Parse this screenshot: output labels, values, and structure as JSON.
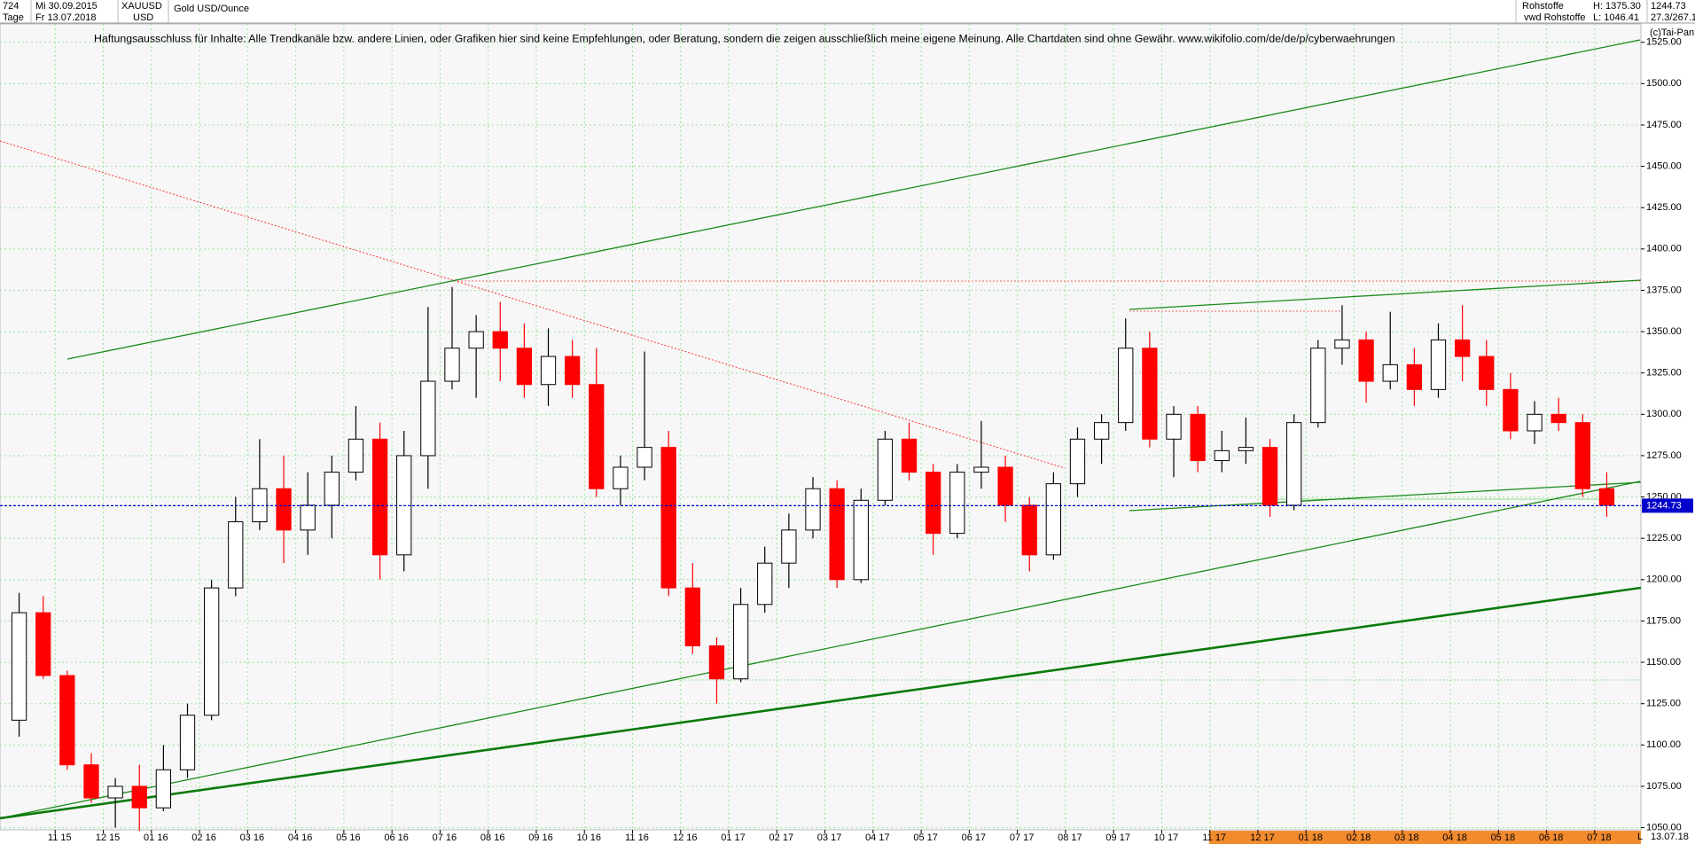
{
  "chart_data": {
    "type": "candlestick",
    "header": {
      "bars": "724",
      "start_date": "Mi 30.09.2015",
      "period": "Tage",
      "end_date": "Fr 13.07.2018",
      "symbol": "XAUUSD",
      "currency": "USD",
      "title": "Gold USD/Ounce",
      "group": "Rohstoffe",
      "high": "H: 1375.30",
      "source": "vwd Rohstoffe",
      "low": "L: 1046.41",
      "last": "1244.73",
      "ratio": "27.3/267.1",
      "copyright": "(c)Tai-Pan"
    },
    "disclaimer": "Haftungsausschluss für Inhalte: Alle Trendkanäle bzw. andere Linien, oder Grafiken hier sind keine Empfehlungen, oder Beratung, sondern die zeigen ausschließlich meine eigene Meinung. Alle Chartdaten sind ohne Gewähr.  www.wikifolio.com/de/de/p/cyberwaehrungen",
    "categories": [
      null,
      null,
      "11 15",
      null,
      "12 15",
      null,
      "01 16",
      null,
      "02 16",
      null,
      "03 16",
      null,
      "04 16",
      null,
      "05 16",
      null,
      "06 16",
      null,
      "07 16",
      null,
      "08 16",
      null,
      "09 16",
      null,
      "10 16",
      null,
      "11 16",
      null,
      "12 16",
      null,
      "01 17",
      null,
      "02 17",
      null,
      "03 17",
      null,
      "04 17",
      null,
      "05 17",
      null,
      "06 17",
      null,
      "07 17",
      null,
      "08 17",
      null,
      "09 17",
      null,
      "10 17",
      null,
      "11 17",
      null,
      "12 17",
      null,
      "01 18",
      null,
      "02 18",
      null,
      "03 18",
      null,
      "04 18",
      null,
      "05 18",
      null,
      "06 18",
      null,
      "07 18"
    ],
    "open": [
      1115,
      1180,
      1142,
      1088,
      1068,
      1075,
      1062,
      1085,
      1118,
      1195,
      1235,
      1255,
      1230,
      1245,
      1265,
      1285,
      1215,
      1275,
      1320,
      1340,
      1350,
      1340,
      1318,
      1335,
      1318,
      1255,
      1268,
      1280,
      1195,
      1160,
      1140,
      1185,
      1210,
      1230,
      1255,
      1200,
      1248,
      1285,
      1265,
      1228,
      1265,
      1268,
      1245,
      1215,
      1258,
      1285,
      1295,
      1340,
      1285,
      1300,
      1272,
      1278,
      1280,
      1245,
      1295,
      1340,
      1345,
      1320,
      1330,
      1315,
      1345,
      1335,
      1315,
      1290,
      1300,
      1295,
      1255
    ],
    "high": [
      1192,
      1190,
      1145,
      1095,
      1080,
      1088,
      1100,
      1125,
      1200,
      1250,
      1285,
      1275,
      1265,
      1275,
      1305,
      1295,
      1290,
      1365,
      1377,
      1360,
      1368,
      1355,
      1352,
      1345,
      1340,
      1275,
      1338,
      1290,
      1210,
      1165,
      1195,
      1220,
      1240,
      1262,
      1260,
      1255,
      1290,
      1295,
      1270,
      1270,
      1296,
      1275,
      1250,
      1265,
      1292,
      1300,
      1358,
      1350,
      1305,
      1305,
      1290,
      1298,
      1285,
      1300,
      1345,
      1366,
      1350,
      1362,
      1340,
      1355,
      1366,
      1345,
      1325,
      1308,
      1310,
      1300,
      1265
    ],
    "low": [
      1105,
      1140,
      1085,
      1065,
      1050,
      1048,
      1060,
      1080,
      1115,
      1190,
      1230,
      1210,
      1215,
      1225,
      1260,
      1200,
      1205,
      1255,
      1315,
      1310,
      1320,
      1310,
      1305,
      1310,
      1250,
      1245,
      1260,
      1190,
      1155,
      1125,
      1138,
      1180,
      1195,
      1225,
      1195,
      1198,
      1245,
      1260,
      1215,
      1225,
      1255,
      1235,
      1205,
      1212,
      1250,
      1270,
      1290,
      1280,
      1262,
      1265,
      1265,
      1270,
      1238,
      1242,
      1292,
      1330,
      1307,
      1315,
      1305,
      1310,
      1320,
      1305,
      1285,
      1282,
      1290,
      1250,
      1238
    ],
    "close": [
      1180,
      1142,
      1088,
      1068,
      1075,
      1062,
      1085,
      1118,
      1195,
      1235,
      1255,
      1230,
      1245,
      1265,
      1285,
      1215,
      1275,
      1320,
      1340,
      1350,
      1340,
      1318,
      1335,
      1318,
      1255,
      1268,
      1280,
      1195,
      1160,
      1140,
      1185,
      1210,
      1230,
      1255,
      1200,
      1248,
      1285,
      1265,
      1228,
      1265,
      1268,
      1245,
      1215,
      1258,
      1285,
      1295,
      1340,
      1285,
      1300,
      1272,
      1278,
      1280,
      1245,
      1295,
      1340,
      1345,
      1320,
      1330,
      1315,
      1345,
      1335,
      1315,
      1290,
      1300,
      1295,
      1255,
      1245
    ],
    "up_color": "#000000",
    "down_color": "#ff0000",
    "last_price": 1244.73,
    "last_price_color": "#0000cc",
    "ylim": [
      1048.7,
      1536.1
    ],
    "yticks": [
      {
        "value": 1050,
        "label": "1050.00"
      },
      {
        "value": 1075,
        "label": "1075.00"
      },
      {
        "value": 1100,
        "label": "1100.00"
      },
      {
        "value": 1125,
        "label": "1125.00"
      },
      {
        "value": 1150,
        "label": "1150.00"
      },
      {
        "value": 1175,
        "label": "1175.00"
      },
      {
        "value": 1200,
        "label": "1200.00"
      },
      {
        "value": 1225,
        "label": "1225.00"
      },
      {
        "value": 1250,
        "label": "1250.00"
      },
      {
        "value": 1275,
        "label": "1275.00"
      },
      {
        "value": 1300,
        "label": "1300.00"
      },
      {
        "value": 1325,
        "label": "1325.00"
      },
      {
        "value": 1350,
        "label": "1350.00"
      },
      {
        "value": 1375,
        "label": "1375.00"
      },
      {
        "value": 1400,
        "label": "1400.00"
      },
      {
        "value": 1425,
        "label": "1425.00"
      },
      {
        "value": 1450,
        "label": "1450.00"
      },
      {
        "value": 1475,
        "label": "1475.00"
      },
      {
        "value": 1500,
        "label": "1500.00"
      },
      {
        "value": 1525,
        "label": "1525.00"
      }
    ],
    "grid": true,
    "axis_end_marker": "L",
    "axis_end_date": "13.07.18"
  }
}
